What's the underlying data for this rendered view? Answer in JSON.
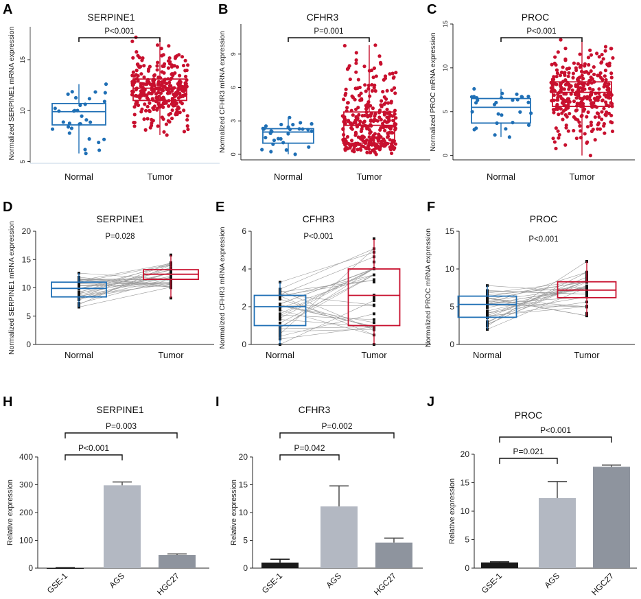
{
  "figure": {
    "colors": {
      "normal": "#1f6fb5",
      "tumor": "#c8102e",
      "paired_point": "#111111",
      "pair_line": "#9a9a9a",
      "bar_gse": "#1a1a1a",
      "bar_ags": "#b3b8c2",
      "bar_hgc": "#8e949e"
    }
  },
  "chart_data": [
    {
      "panel": "A",
      "type": "scatter",
      "style": "box-scatter",
      "title": "SERPINE1",
      "ylabel": "Normalized SERPINE1 mRNA expression",
      "categories": [
        "Normal",
        "Tumor"
      ],
      "ylim": [
        4.9,
        18.5
      ],
      "yticks": [
        5,
        10,
        15
      ],
      "yticks_rotated": true,
      "annotation": "P<0.001",
      "boxes": [
        {
          "group": "Normal",
          "q1": 8.6,
          "median": 9.9,
          "q3": 10.7,
          "min": 5.8,
          "max": 12.6,
          "n": 32
        },
        {
          "group": "Tumor",
          "q1": 11.0,
          "median": 12.2,
          "q3": 13.1,
          "min": 7.6,
          "max": 17.2,
          "n": 320
        }
      ]
    },
    {
      "panel": "B",
      "type": "scatter",
      "style": "box-scatter",
      "title": "CFHR3",
      "ylabel": "Normalized CFHR3 mRNA expression",
      "categories": [
        "Normal",
        "Tumor"
      ],
      "ylim": [
        -0.5,
        11.7
      ],
      "yticks": [
        0,
        3,
        6,
        9
      ],
      "yticks_rotated": true,
      "annotation": "P=0.001",
      "boxes": [
        {
          "group": "Normal",
          "q1": 1.0,
          "median": 2.0,
          "q3": 2.3,
          "min": 0.0,
          "max": 3.3,
          "n": 30
        },
        {
          "group": "Tumor",
          "q1": 1.0,
          "median": 2.6,
          "q3": 3.8,
          "min": 0.0,
          "max": 9.8,
          "n": 320
        }
      ]
    },
    {
      "panel": "C",
      "type": "scatter",
      "style": "box-scatter",
      "title": "PROC",
      "ylabel": "Normalized PROC mRNA expression",
      "categories": [
        "Normal",
        "Tumor"
      ],
      "ylim": [
        -0.5,
        15
      ],
      "yticks": [
        0,
        5,
        10,
        15
      ],
      "yticks_rotated": true,
      "annotation": "P<0.001",
      "boxes": [
        {
          "group": "Normal",
          "q1": 3.7,
          "median": 5.5,
          "q3": 6.5,
          "min": 2.1,
          "max": 7.6,
          "n": 30
        },
        {
          "group": "Tumor",
          "q1": 5.6,
          "median": 7.2,
          "q3": 8.4,
          "min": 0.0,
          "max": 13.2,
          "n": 320
        }
      ]
    },
    {
      "panel": "D",
      "type": "scatter",
      "style": "paired-box",
      "title": "SERPINE1",
      "ylabel": "Normalized SERPINE1 mRNA expression",
      "categories": [
        "Normal",
        "Tumor"
      ],
      "ylim": [
        0,
        20
      ],
      "yticks": [
        0,
        5,
        10,
        15,
        20
      ],
      "annotation": "P=0.028",
      "boxes": [
        {
          "group": "Normal",
          "q1": 8.4,
          "median": 9.9,
          "q3": 11.0,
          "min": 6.6,
          "max": 12.6,
          "n": 32
        },
        {
          "group": "Tumor",
          "q1": 11.5,
          "median": 12.4,
          "q3": 13.2,
          "min": 8.2,
          "max": 15.8,
          "n": 32
        }
      ]
    },
    {
      "panel": "E",
      "type": "scatter",
      "style": "paired-box",
      "title": "CFHR3",
      "ylabel": "Normalized CFHR3 mRNA expression",
      "categories": [
        "Normal",
        "Tumor"
      ],
      "ylim": [
        0,
        6
      ],
      "yticks": [
        0,
        2,
        4,
        6
      ],
      "annotation": "P<0.001",
      "boxes": [
        {
          "group": "Normal",
          "q1": 1.0,
          "median": 2.0,
          "q3": 2.6,
          "min": 0.0,
          "max": 3.3,
          "n": 32
        },
        {
          "group": "Tumor",
          "q1": 1.0,
          "median": 2.6,
          "q3": 4.0,
          "min": 0.0,
          "max": 5.6,
          "n": 32
        }
      ]
    },
    {
      "panel": "F",
      "type": "scatter",
      "style": "paired-box",
      "title": "PROC",
      "ylabel": "Normalized PROC mRNA expression",
      "categories": [
        "Normal",
        "Tumor"
      ],
      "ylim": [
        0,
        15
      ],
      "yticks": [
        0,
        5,
        10,
        15
      ],
      "annotation": "P<0.001",
      "boxes": [
        {
          "group": "Normal",
          "q1": 3.6,
          "median": 5.3,
          "q3": 6.4,
          "min": 2.0,
          "max": 7.8,
          "n": 32
        },
        {
          "group": "Tumor",
          "q1": 6.2,
          "median": 7.2,
          "q3": 8.3,
          "min": 3.8,
          "max": 11.0,
          "n": 32
        }
      ]
    },
    {
      "panel": "H",
      "type": "bar",
      "title": "SERPINE1",
      "ylabel": "Relative expression",
      "categories": [
        "GSE-1",
        "AGS",
        "HGC27"
      ],
      "values": [
        1,
        298,
        47
      ],
      "errors": [
        0.5,
        12,
        4
      ],
      "ylim": [
        0,
        400
      ],
      "yticks": [
        0,
        100,
        200,
        300,
        400
      ],
      "comparisons": [
        {
          "from": "GSE-1",
          "to": "AGS",
          "label": "P<0.001"
        },
        {
          "from": "GSE-1",
          "to": "HGC27",
          "label": "P=0.003"
        }
      ]
    },
    {
      "panel": "I",
      "type": "bar",
      "title": "CFHR3",
      "ylabel": "Relative expression",
      "categories": [
        "GSE-1",
        "AGS",
        "HGC27"
      ],
      "values": [
        1,
        11.1,
        4.6
      ],
      "errors": [
        0.6,
        3.7,
        0.8
      ],
      "ylim": [
        0,
        20
      ],
      "yticks": [
        0,
        5,
        10,
        15,
        20
      ],
      "comparisons": [
        {
          "from": "GSE-1",
          "to": "AGS",
          "label": "P=0.042"
        },
        {
          "from": "GSE-1",
          "to": "HGC27",
          "label": "P=0.002"
        }
      ]
    },
    {
      "panel": "J",
      "type": "bar",
      "title": "PROC",
      "ylabel": "Relative expression",
      "categories": [
        "GSE-1",
        "AGS",
        "HGC27"
      ],
      "values": [
        1,
        12.3,
        17.8
      ],
      "errors": [
        0.1,
        2.9,
        0.3
      ],
      "ylim": [
        0,
        20
      ],
      "yticks": [
        0,
        5,
        10,
        15,
        20
      ],
      "comparisons": [
        {
          "from": "GSE-1",
          "to": "AGS",
          "label": "P=0.021"
        },
        {
          "from": "GSE-1",
          "to": "HGC27",
          "label": "P<0.001"
        }
      ]
    }
  ]
}
